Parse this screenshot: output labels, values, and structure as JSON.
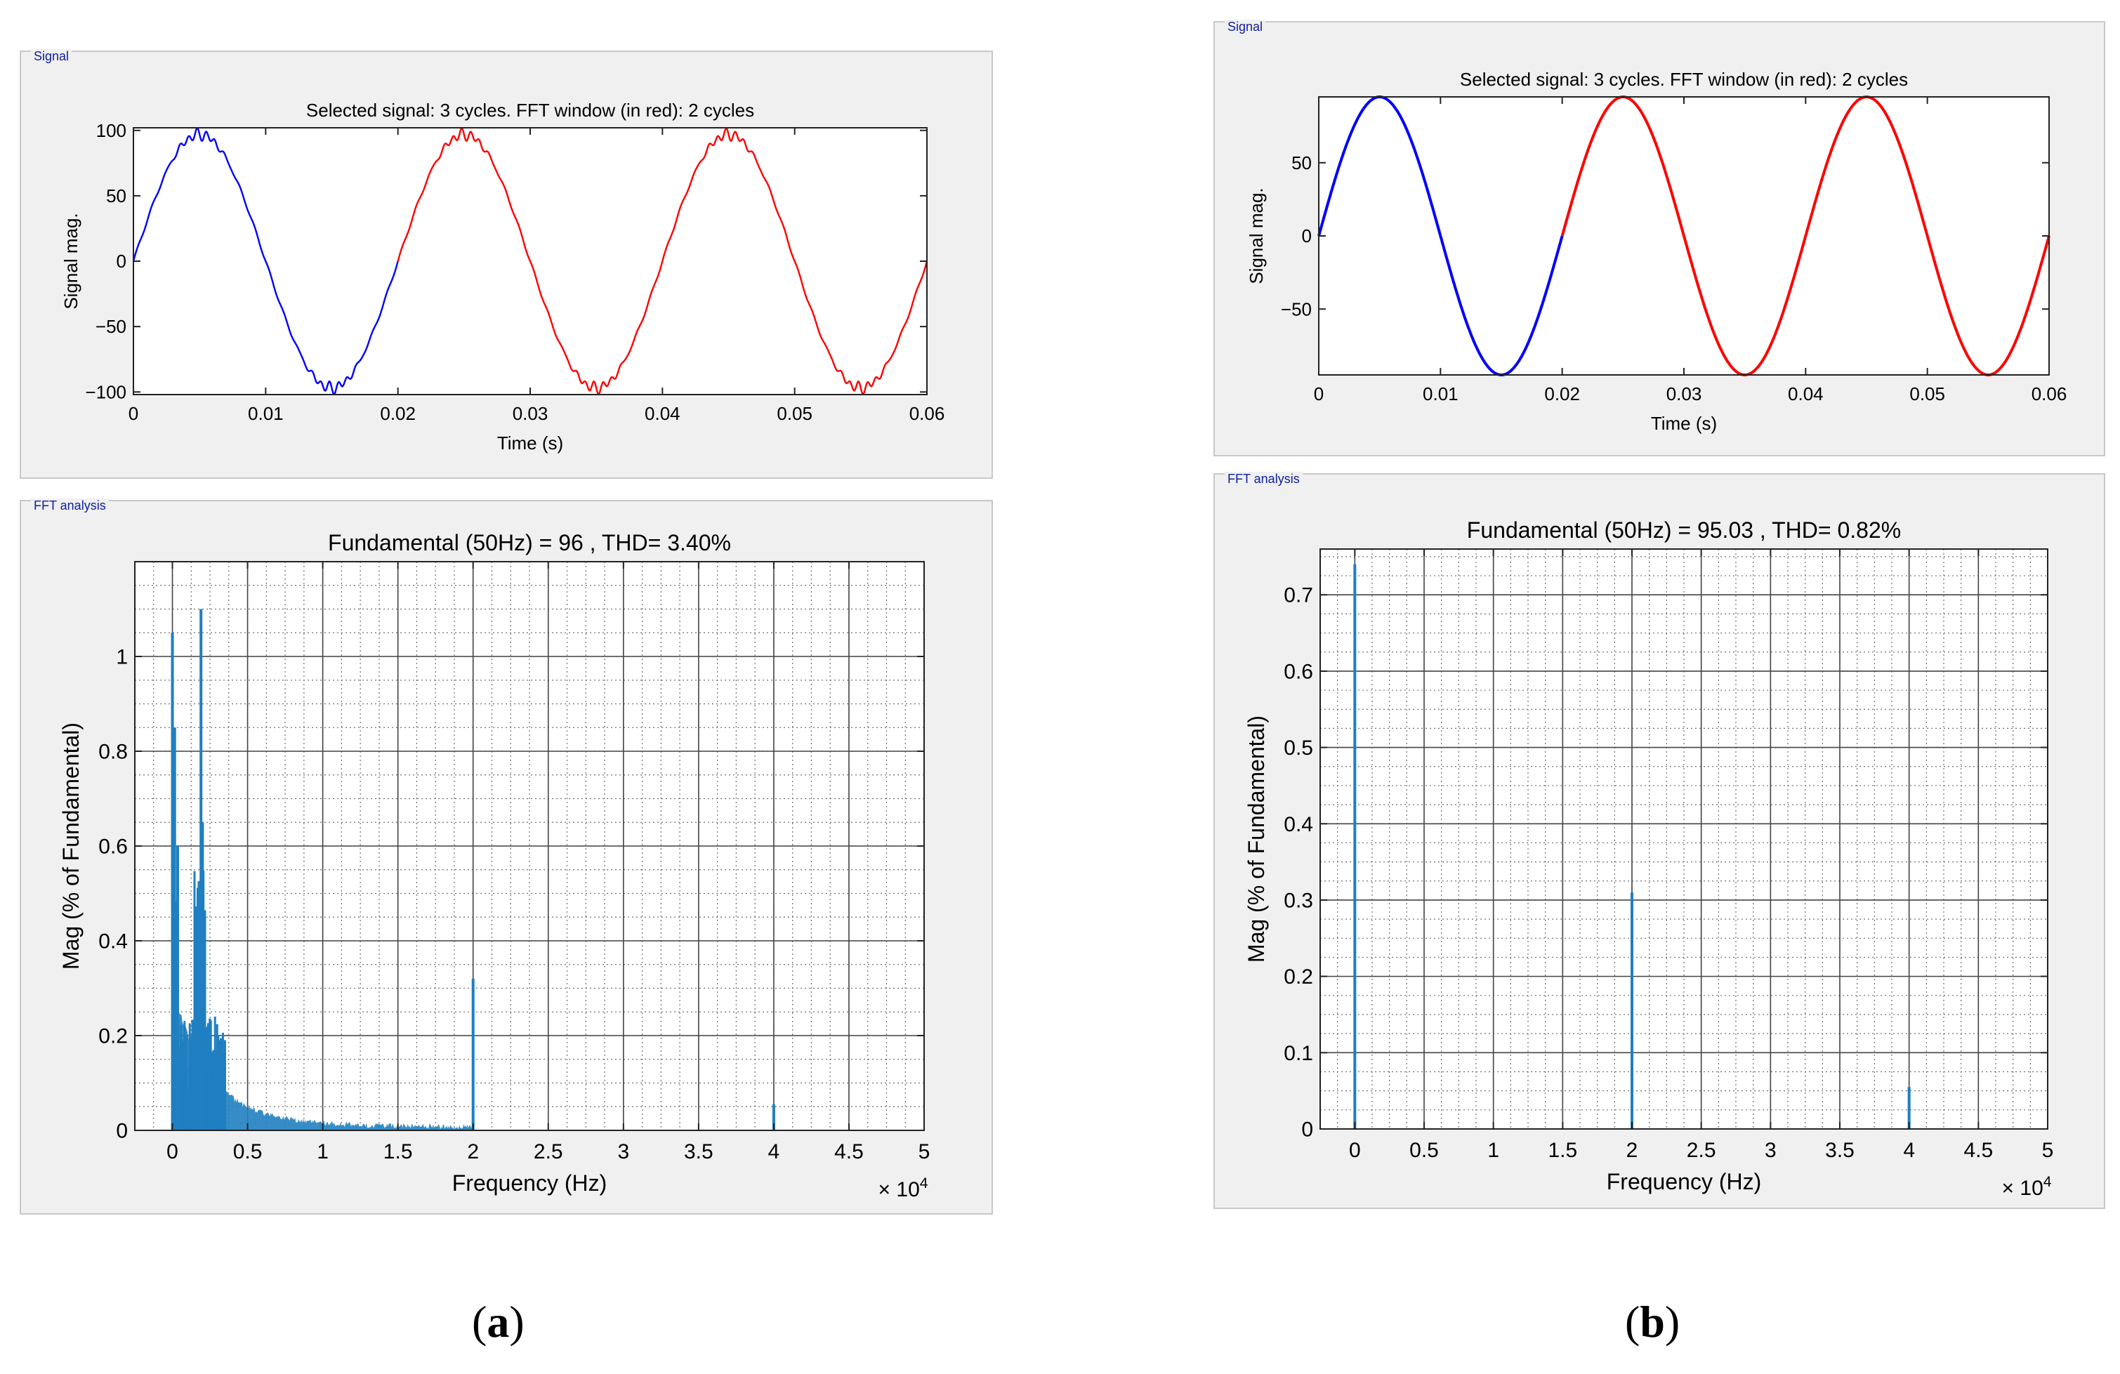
{
  "figure": {
    "caption_a": "(a)",
    "caption_b": "(b)",
    "caption_a_open": "(",
    "caption_a_letter": "a",
    "caption_a_close": ")",
    "caption_b_open": "(",
    "caption_b_letter": "b",
    "caption_b_close": ")"
  },
  "colors": {
    "panel_bg": "#f0f0f0",
    "signal_blue": "#0000ff",
    "signal_red": "#ff0000",
    "fft_bar": "#1f7fc0",
    "grid_dark": "#444444"
  },
  "panels": {
    "a_signal": {
      "group_title": "Signal"
    },
    "a_fft": {
      "group_title": "FFT analysis"
    },
    "b_signal": {
      "group_title": "Signal"
    },
    "b_fft": {
      "group_title": "FFT analysis"
    }
  },
  "chart_data": [
    {
      "id": "a_signal",
      "type": "line",
      "title": "Selected signal: 3 cycles. FFT window (in red): 2 cycles",
      "xlabel": "Time (s)",
      "ylabel": "Signal mag.",
      "xlim": [
        0,
        0.06
      ],
      "ylim": [
        -102,
        102
      ],
      "xticks": [
        0,
        0.01,
        0.02,
        0.03,
        0.04,
        0.05,
        0.06
      ],
      "xtick_labels": [
        "0",
        "0.01",
        "0.02",
        "0.03",
        "0.04",
        "0.05",
        "0.06"
      ],
      "yticks": [
        100,
        50,
        0,
        -50,
        -100
      ],
      "ytick_labels": [
        "100",
        "50",
        "0",
        "−50",
        "−100"
      ],
      "series": [
        {
          "name": "Selected signal",
          "color": "#0000ff",
          "x_range": [
            0,
            0.02
          ],
          "amplitude": 97,
          "frequency_hz": 50,
          "ripple": 4
        },
        {
          "name": "FFT window",
          "color": "#ff0000",
          "x_range": [
            0.02,
            0.06
          ],
          "amplitude": 97,
          "frequency_hz": 50,
          "ripple": 4
        }
      ]
    },
    {
      "id": "a_fft",
      "type": "bar",
      "title": "Fundamental (50Hz) = 96 , THD= 3.40%",
      "xlabel": "Frequency (Hz)",
      "ylabel": "Mag (% of Fundamental)",
      "x_exponent": "× 10",
      "x_exponent_power": "4",
      "xlim": [
        -2500,
        50000
      ],
      "ylim": [
        0,
        1.2
      ],
      "xticks": [
        0,
        5000,
        10000,
        15000,
        20000,
        25000,
        30000,
        35000,
        40000,
        45000,
        50000
      ],
      "xtick_labels": [
        "0",
        "0.5",
        "1",
        "1.5",
        "2",
        "2.5",
        "3",
        "3.5",
        "4",
        "4.5",
        "5"
      ],
      "yticks": [
        0,
        0.2,
        0.4,
        0.6,
        0.8,
        1
      ],
      "ytick_labels": [
        "0",
        "0.2",
        "0.4",
        "0.6",
        "0.8",
        "1"
      ],
      "peaks": [
        {
          "freq": 0,
          "mag": 1.05
        },
        {
          "freq": 150,
          "mag": 0.85
        },
        {
          "freq": 350,
          "mag": 0.6
        },
        {
          "freq": 1900,
          "mag": 1.1
        },
        {
          "freq": 1700,
          "mag": 0.5
        },
        {
          "freq": 2000,
          "mag": 0.65
        },
        {
          "freq": 20000,
          "mag": 0.32
        },
        {
          "freq": 40000,
          "mag": 0.055
        }
      ]
    },
    {
      "id": "b_signal",
      "type": "line",
      "title": "Selected signal: 3 cycles. FFT window (in red): 2 cycles",
      "xlabel": "Time (s)",
      "ylabel": "Signal mag.",
      "xlim": [
        0,
        0.06
      ],
      "ylim": [
        -95,
        95
      ],
      "xticks": [
        0,
        0.01,
        0.02,
        0.03,
        0.04,
        0.05,
        0.06
      ],
      "xtick_labels": [
        "0",
        "0.01",
        "0.02",
        "0.03",
        "0.04",
        "0.05",
        "0.06"
      ],
      "yticks": [
        50,
        0,
        -50
      ],
      "ytick_labels": [
        "50",
        "0",
        "−50"
      ],
      "series": [
        {
          "name": "Selected signal",
          "color": "#0000ff",
          "x_range": [
            0,
            0.02
          ],
          "amplitude": 95,
          "frequency_hz": 50,
          "ripple": 0
        },
        {
          "name": "FFT window",
          "color": "#ff0000",
          "x_range": [
            0.02,
            0.06
          ],
          "amplitude": 95,
          "frequency_hz": 50,
          "ripple": 0
        }
      ]
    },
    {
      "id": "b_fft",
      "type": "bar",
      "title": "Fundamental (50Hz) = 95.03 , THD= 0.82%",
      "xlabel": "Frequency (Hz)",
      "ylabel": "Mag (% of Fundamental)",
      "x_exponent": "× 10",
      "x_exponent_power": "4",
      "xlim": [
        -2500,
        50000
      ],
      "ylim": [
        0,
        0.76
      ],
      "xticks": [
        0,
        5000,
        10000,
        15000,
        20000,
        25000,
        30000,
        35000,
        40000,
        45000,
        50000
      ],
      "xtick_labels": [
        "0",
        "0.5",
        "1",
        "1.5",
        "2",
        "2.5",
        "3",
        "3.5",
        "4",
        "4.5",
        "5"
      ],
      "yticks": [
        0,
        0.1,
        0.2,
        0.3,
        0.4,
        0.5,
        0.6,
        0.7
      ],
      "ytick_labels": [
        "0",
        "0.1",
        "0.2",
        "0.3",
        "0.4",
        "0.5",
        "0.6",
        "0.7"
      ],
      "peaks": [
        {
          "freq": 0,
          "mag": 0.74
        },
        {
          "freq": 20000,
          "mag": 0.31
        },
        {
          "freq": 40000,
          "mag": 0.055
        }
      ]
    }
  ]
}
